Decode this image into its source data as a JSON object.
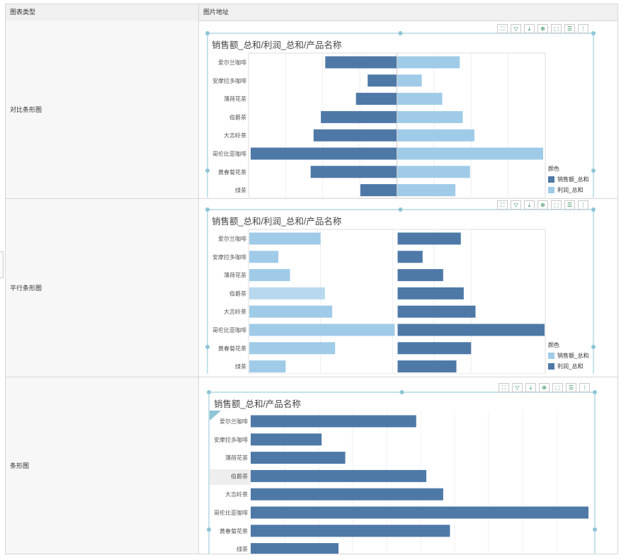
{
  "table": {
    "header": {
      "col1": "图表类型",
      "col2": "图片地址"
    },
    "rows": [
      {
        "type_label": "对比条形图"
      },
      {
        "type_label": "平行条形图"
      },
      {
        "type_label": "条形图"
      }
    ]
  },
  "colors": {
    "dark": "#4e79a7",
    "light": "#a0cbe8",
    "light_hover": "#b8d8ee",
    "handle": "#8ec5d6"
  },
  "toolbar_icons": [
    "expand-icon",
    "filter-icon",
    "export-icon",
    "zoom-in-icon",
    "select-icon",
    "list-icon",
    "more-icon"
  ],
  "toolbar_glyphs": [
    "⛶",
    "▽",
    "⤓",
    "⊕",
    "⬚",
    "☰",
    "⋮"
  ],
  "chart_data": [
    {
      "type": "bar",
      "variant": "diverging",
      "title": "销售额_总和/利润_总和/产品名称",
      "categories": [
        "爱尔兰咖啡",
        "安摩拉多咖啡",
        "薄荷花茶",
        "伯爵茶",
        "大吉岭茶",
        "哥伦比亚咖啡",
        "黄春菊花茶",
        "绿茶"
      ],
      "series": [
        {
          "name": "销售额_总和",
          "values": [
            49,
            20,
            28,
            52,
            57,
            100,
            59,
            25
          ],
          "color": "#4e79a7"
        },
        {
          "name": "利润_总和",
          "values": [
            43,
            17,
            31,
            45,
            53,
            100,
            50,
            40
          ],
          "color": "#a0cbe8"
        }
      ],
      "legend_title": "颜色",
      "legend_position": "right"
    },
    {
      "type": "bar",
      "variant": "parallel",
      "title": "销售额_总和/利润_总和/产品名称",
      "categories": [
        "爱尔兰咖啡",
        "安摩拉多咖啡",
        "薄荷花茶",
        "伯爵茶",
        "大吉岭茶",
        "哥伦比亚咖啡",
        "黄春菊花茶",
        "绿茶"
      ],
      "series": [
        {
          "name": "销售额_总和",
          "values": [
            49,
            20,
            28,
            52,
            57,
            100,
            59,
            25
          ],
          "color": "#a0cbe8"
        },
        {
          "name": "利润_总和",
          "values": [
            43,
            17,
            31,
            45,
            53,
            100,
            50,
            40
          ],
          "color": "#4e79a7"
        }
      ],
      "legend_title": "颜色",
      "legend_position": "right"
    },
    {
      "type": "bar",
      "variant": "single",
      "title": "销售额_总和/产品名称",
      "categories": [
        "爱尔兰咖啡",
        "安摩拉多咖啡",
        "薄荷花茶",
        "伯爵茶",
        "大吉岭茶",
        "哥伦比亚咖啡",
        "黄春菊花茶",
        "绿茶"
      ],
      "series": [
        {
          "name": "",
          "values": [
            49,
            21,
            28,
            52,
            57,
            100,
            59,
            26
          ],
          "color": "#4e79a7"
        }
      ]
    }
  ]
}
